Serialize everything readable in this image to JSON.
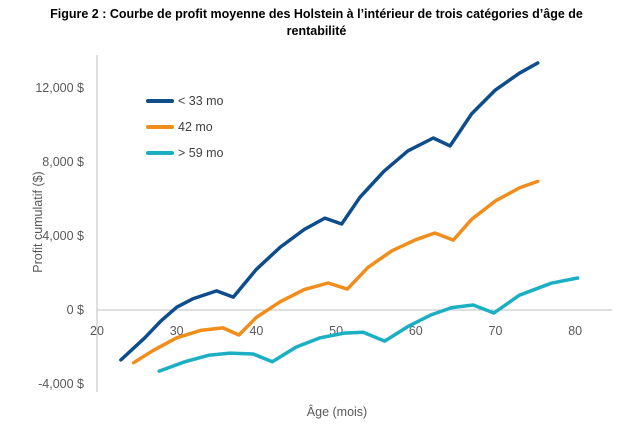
{
  "chart_data": {
    "type": "line",
    "title_line1": "Figure 2 : Courbe de profit moyenne des Holstein à l’intérieur de trois catégories d’âge de",
    "title_line2": "rentabilité",
    "xlabel": "Âge (mois)",
    "ylabel": "Profit cumulatif ($)",
    "xlim": [
      20,
      85
    ],
    "ylim": [
      -4500,
      14000
    ],
    "x_ticks": [
      20,
      30,
      40,
      50,
      60,
      70,
      80
    ],
    "x_tick_labels": [
      "20",
      "30",
      "40",
      "50",
      "60",
      "70",
      "80"
    ],
    "y_ticks": [
      -4000,
      0,
      4000,
      8000,
      12000
    ],
    "y_tick_labels": [
      "-4,000 $",
      "0 $",
      "4,000 $",
      "8,000 $",
      "12,000 $"
    ],
    "grid": false,
    "legend_position": "top-left",
    "series": [
      {
        "name": "< 33 mo",
        "color": "#0E4D8C",
        "points": [
          [
            23,
            -2700
          ],
          [
            26,
            -1500
          ],
          [
            28,
            -600
          ],
          [
            30,
            150
          ],
          [
            32,
            600
          ],
          [
            35,
            1030
          ],
          [
            37.1,
            700
          ],
          [
            40,
            2200
          ],
          [
            43,
            3400
          ],
          [
            46,
            4350
          ],
          [
            48.6,
            4970
          ],
          [
            50.7,
            4650
          ],
          [
            53,
            6100
          ],
          [
            56,
            7500
          ],
          [
            59,
            8600
          ],
          [
            62.2,
            9300
          ],
          [
            64.3,
            8870
          ],
          [
            67,
            10600
          ],
          [
            70,
            11900
          ],
          [
            73,
            12800
          ],
          [
            75.3,
            13350
          ]
        ]
      },
      {
        "name": "42 mo",
        "color": "#F28C1B",
        "points": [
          [
            24.6,
            -2850
          ],
          [
            27,
            -2200
          ],
          [
            30,
            -1500
          ],
          [
            33,
            -1100
          ],
          [
            35.8,
            -970
          ],
          [
            37.8,
            -1350
          ],
          [
            40,
            -400
          ],
          [
            43,
            450
          ],
          [
            46,
            1100
          ],
          [
            49,
            1460
          ],
          [
            51.4,
            1130
          ],
          [
            54,
            2300
          ],
          [
            57,
            3200
          ],
          [
            60,
            3800
          ],
          [
            62.4,
            4160
          ],
          [
            64.7,
            3780
          ],
          [
            67,
            4900
          ],
          [
            70,
            5900
          ],
          [
            73,
            6600
          ],
          [
            75.3,
            6950
          ]
        ]
      },
      {
        "name": "> 59 mo",
        "color": "#1BAFC4",
        "points": [
          [
            27.8,
            -3300
          ],
          [
            31,
            -2800
          ],
          [
            34,
            -2450
          ],
          [
            36.7,
            -2330
          ],
          [
            39.6,
            -2380
          ],
          [
            42,
            -2800
          ],
          [
            45,
            -2000
          ],
          [
            48,
            -1500
          ],
          [
            51,
            -1250
          ],
          [
            53.4,
            -1200
          ],
          [
            56.1,
            -1680
          ],
          [
            59,
            -900
          ],
          [
            62,
            -250
          ],
          [
            64.5,
            130
          ],
          [
            67.2,
            270
          ],
          [
            69.8,
            -160
          ],
          [
            73,
            800
          ],
          [
            77,
            1450
          ],
          [
            80.3,
            1730
          ]
        ]
      }
    ]
  }
}
